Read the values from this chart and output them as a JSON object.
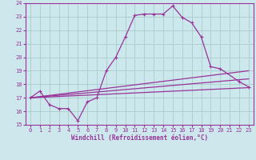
{
  "xlabel": "Windchill (Refroidissement éolien,°C)",
  "bg_color": "#cce8ec",
  "grid_color": "#aacccc",
  "line_color": "#993399",
  "xlim": [
    -0.5,
    23.5
  ],
  "ylim": [
    15,
    24
  ],
  "xticks": [
    0,
    1,
    2,
    3,
    4,
    5,
    6,
    7,
    8,
    9,
    10,
    11,
    12,
    13,
    14,
    15,
    16,
    17,
    18,
    19,
    20,
    21,
    22,
    23
  ],
  "yticks": [
    15,
    16,
    17,
    18,
    19,
    20,
    21,
    22,
    23,
    24
  ],
  "curve1_x": [
    0,
    1,
    2,
    3,
    4,
    5,
    6,
    7,
    8,
    9,
    10,
    11,
    12,
    13,
    14,
    15,
    16,
    17,
    18,
    19,
    20,
    22,
    23
  ],
  "curve1_y": [
    17.0,
    17.5,
    16.5,
    16.2,
    16.2,
    15.3,
    16.7,
    17.0,
    19.0,
    20.0,
    21.5,
    23.1,
    23.2,
    23.2,
    23.2,
    23.8,
    22.95,
    22.55,
    21.5,
    19.3,
    19.15,
    18.2,
    17.8
  ],
  "line2": [
    [
      0,
      23
    ],
    [
      17.0,
      19.0
    ]
  ],
  "line3": [
    [
      0,
      23
    ],
    [
      17.0,
      18.4
    ]
  ],
  "line4": [
    [
      0,
      23
    ],
    [
      17.0,
      17.75
    ]
  ]
}
